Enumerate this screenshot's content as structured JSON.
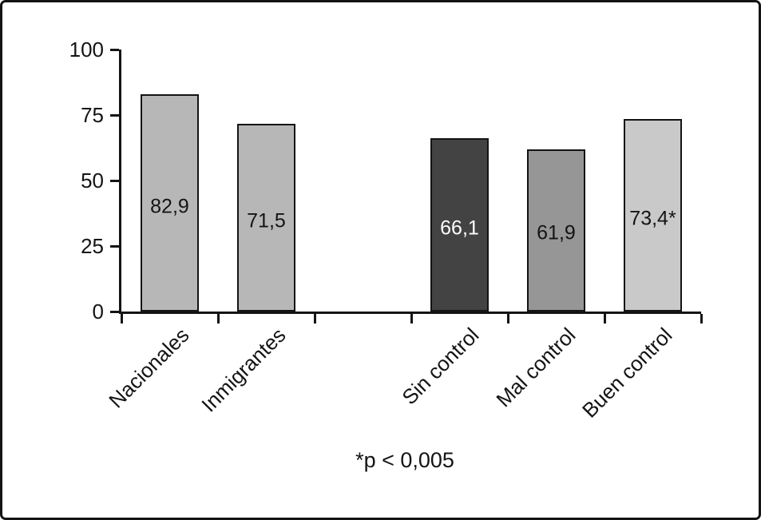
{
  "chart_data": {
    "type": "bar",
    "title": "",
    "xlabel": "",
    "ylabel": "",
    "categories": [
      "Nacionales",
      "Inmigrantes",
      "Sin control",
      "Mal control",
      "Buen control"
    ],
    "values": [
      82.9,
      71.5,
      66.1,
      61.9,
      73.4
    ],
    "value_labels": [
      "82,9",
      "71,5",
      "66,1",
      "61,9",
      "73,4*"
    ],
    "slots": [
      0,
      1,
      3,
      4,
      5
    ],
    "total_slots": 6,
    "bar_colors": [
      "#b7b7b7",
      "#b7b7b7",
      "#434343",
      "#969696",
      "#c9c9c9"
    ],
    "value_label_colors": [
      "#141414",
      "#141414",
      "#ffffff",
      "#141414",
      "#141414"
    ],
    "ylim": [
      0,
      100
    ],
    "yticks": [
      0,
      25,
      50,
      75,
      100
    ],
    "grid": false,
    "legend_position": "none",
    "footnote": "*p < 0,005",
    "axis_color": "#141414",
    "background_color": "#ffffff"
  }
}
